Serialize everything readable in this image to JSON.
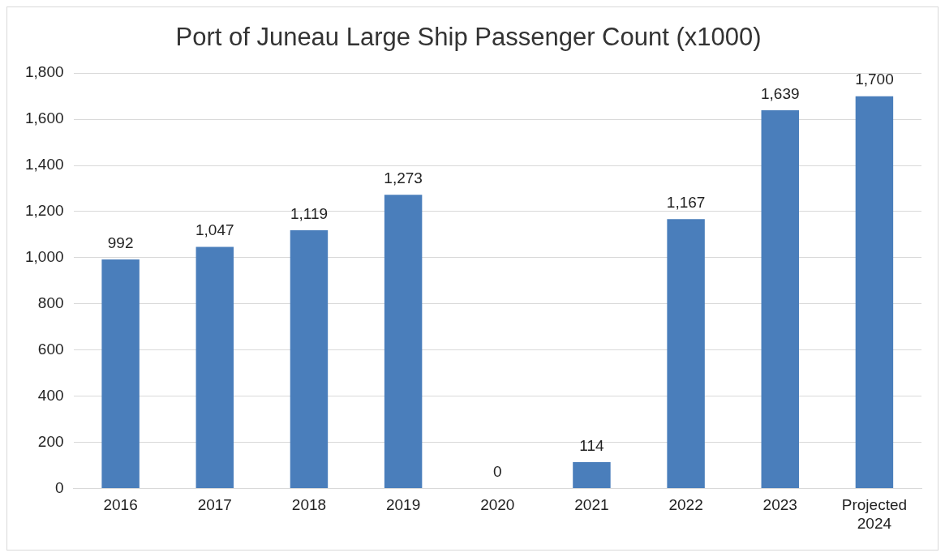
{
  "chart_data": {
    "type": "bar",
    "title": "Port of Juneau Large Ship Passenger Count (x1000)",
    "categories": [
      "2016",
      "2017",
      "2018",
      "2019",
      "2020",
      "2021",
      "2022",
      "2023",
      "Projected 2024"
    ],
    "values": [
      992,
      1047,
      1119,
      1273,
      0,
      114,
      1167,
      1639,
      1700
    ],
    "value_labels": [
      "992",
      "1,047",
      "1,119",
      "1,273",
      "0",
      "114",
      "1,167",
      "1,639",
      "1,700"
    ],
    "color": "#4a7ebb",
    "ylim": [
      0,
      1800
    ],
    "yticks": [
      {
        "value": 0,
        "label": "0"
      },
      {
        "value": 200,
        "label": "200"
      },
      {
        "value": 400,
        "label": "400"
      },
      {
        "value": 600,
        "label": "600"
      },
      {
        "value": 800,
        "label": "800"
      },
      {
        "value": 1000,
        "label": "1,000"
      },
      {
        "value": 1200,
        "label": "1,200"
      },
      {
        "value": 1400,
        "label": "1,400"
      },
      {
        "value": 1600,
        "label": "1,600"
      },
      {
        "value": 1800,
        "label": "1,800"
      }
    ],
    "grid": "y",
    "legend": false
  }
}
